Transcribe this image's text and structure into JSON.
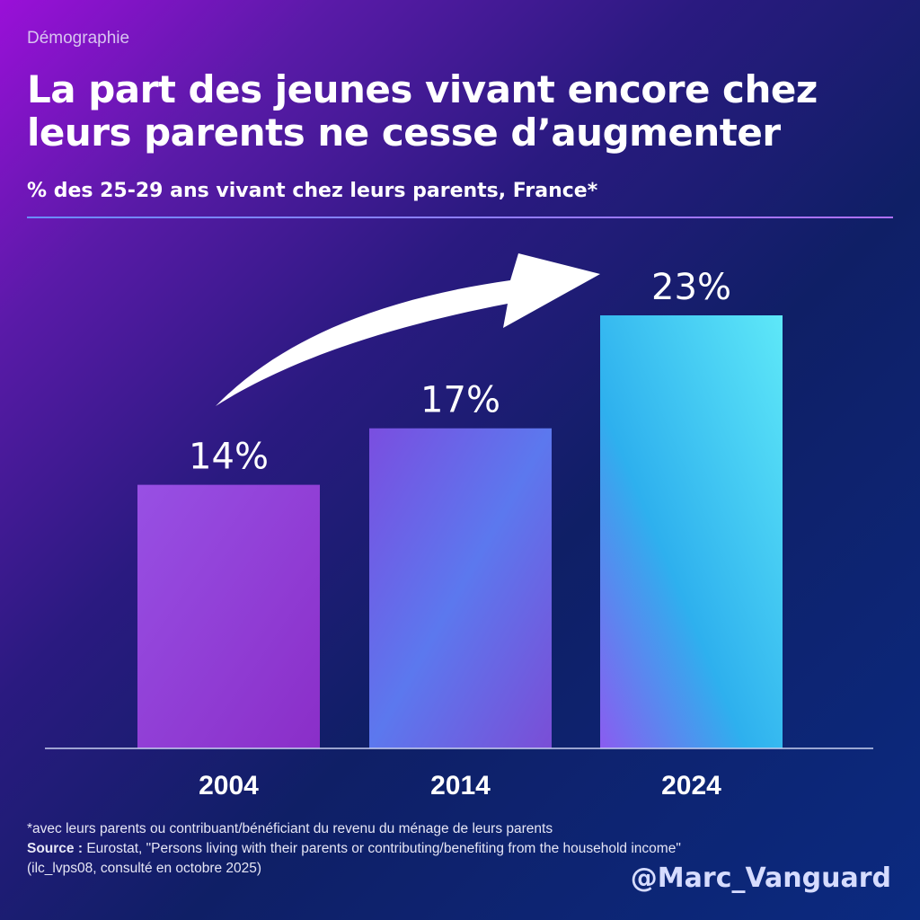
{
  "kicker": "Démographie",
  "title": "La part des jeunes vivant encore chez leurs parents ne cesse d’augmenter",
  "subtitle": "% des 25-29 ans vivant chez leurs parents, France*",
  "footnote": "*avec leurs parents ou contribuant/bénéficiant du revenu du ménage de leurs parents",
  "source_label": "Source :",
  "source_text": " Eurostat, \"Persons living with their parents or contributing/benefiting from the household income\"",
  "source_detail": "(ilc_lvps08, consulté en octobre 2025)",
  "handle": "@Marc_Vanguard",
  "chart_data": {
    "type": "bar",
    "categories": [
      "2004",
      "2014",
      "2024"
    ],
    "values": [
      14,
      17,
      23
    ],
    "data_labels": [
      "14%",
      "17%",
      "23%"
    ],
    "ylim": [
      0,
      23
    ],
    "grid": false,
    "annotation": "upward-trend-arrow",
    "colors": {
      "bar_2004": "#9a4be0",
      "bar_2014": "#6a6ee6",
      "bar_2024": "#3ccbf0"
    }
  }
}
